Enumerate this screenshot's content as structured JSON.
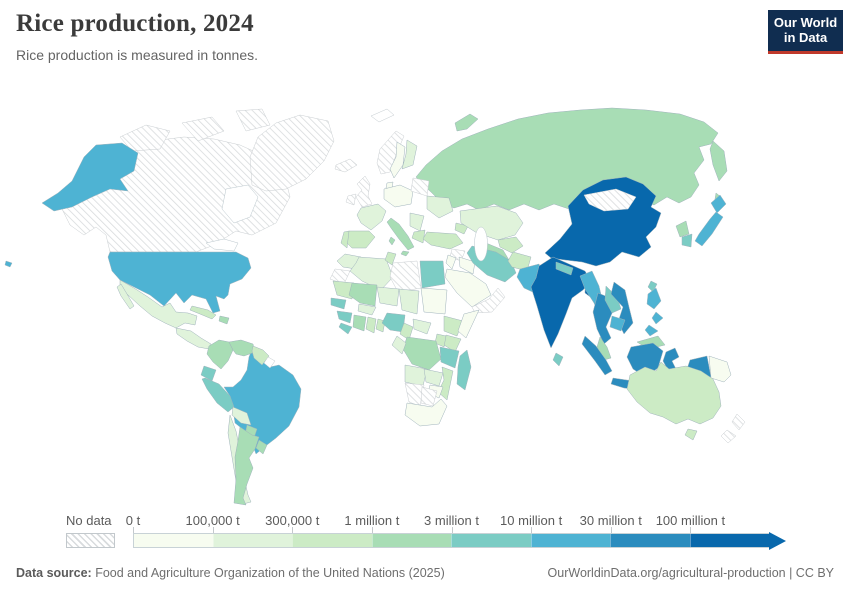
{
  "header": {
    "title": "Rice production, 2024",
    "subtitle": "Rice production is measured in tonnes."
  },
  "logo": {
    "line1": "Our World",
    "line2": "in Data"
  },
  "legend": {
    "no_data_label": "No data",
    "bins": [
      {
        "label": "0 t",
        "color": "#f7fcf0"
      },
      {
        "label": "100,000 t",
        "color": "#e0f3db"
      },
      {
        "label": "300,000 t",
        "color": "#ccebc5"
      },
      {
        "label": "1 million t",
        "color": "#a8ddb5"
      },
      {
        "label": "3 million t",
        "color": "#7bccc4"
      },
      {
        "label": "10 million t",
        "color": "#4eb3d3"
      },
      {
        "label": "30 million t",
        "color": "#2b8cbe"
      },
      {
        "label": "100 million t",
        "color": "#0868ac"
      }
    ]
  },
  "footer": {
    "source_prefix": "Data source:",
    "source": "Food and Agriculture Organization of the United Nations (2025)",
    "right": "OurWorldinData.org/agricultural-production | CC BY"
  },
  "chart_data": {
    "type": "heatmap",
    "variant": "world-choropleth",
    "title": "Rice production, 2024",
    "subtitle": "Rice production is measured in tonnes.",
    "unit": "tonnes",
    "bin_labels": [
      "0 t",
      "100,000 t",
      "300,000 t",
      "1 million t",
      "3 million t",
      "10 million t",
      "30 million t",
      "100 million t"
    ],
    "bin_colors": [
      "#f7fcf0",
      "#e0f3db",
      "#ccebc5",
      "#a8ddb5",
      "#7bccc4",
      "#4eb3d3",
      "#2b8cbe",
      "#0868ac"
    ],
    "no_data": [
      "Canada",
      "Greenland",
      "Iceland",
      "United Kingdom",
      "Ireland",
      "Norway",
      "Belarus/Baltics",
      "Western Sahara",
      "Libya",
      "Syria",
      "Yemen/Oman",
      "Mongolia",
      "Namibia",
      "Botswana",
      "New Zealand"
    ],
    "outline_only": [
      "Svalbard",
      "French Guiana"
    ],
    "countries": {
      "China": 7,
      "India": 7,
      "Bangladesh": 7,
      "Indonesia": 6,
      "Vietnam": 6,
      "Thailand": 6,
      "United States": 5,
      "Brazil": 5,
      "Pakistan": 5,
      "Myanmar": 5,
      "Philippines": 5,
      "Japan": 5,
      "Cambodia": 5,
      "Egypt": 4,
      "Iran": 4,
      "Nigeria": 4,
      "Tanzania": 4,
      "Madagascar": 4,
      "Peru": 4,
      "Ecuador": 4,
      "Guinea": 4,
      "Sierra Leone/Liberia": 4,
      "Nepal": 4,
      "Sri Lanka": 4,
      "South Korea": 4,
      "Taiwan": 4,
      "Senegal": 4,
      "Laos": 4,
      "Russia": 3,
      "Italy": 3,
      "Mali": 3,
      "Ivory Coast": 3,
      "DR Congo": 3,
      "Colombia": 3,
      "Venezuela": 3,
      "Paraguay": 3,
      "Argentina": 3,
      "Uruguay": 3,
      "North Korea": 3,
      "Malaysia": 3,
      "Turkmenistan": 3,
      "Haiti/Dominican Rep.": 3,
      "Spain": 2,
      "Portugal": 2,
      "Greece": 2,
      "Turkey": 2,
      "Afghanistan": 2,
      "Uzbekistan": 2,
      "Cuba": 2,
      "Australia": 2,
      "Mauritania": 2,
      "Ghana": 2,
      "Togo/Benin": 2,
      "Cameroon": 2,
      "Mozambique": 2,
      "Ethiopia": 2,
      "Kenya": 2,
      "Uganda": 2,
      "Guyana/Suriname": 2,
      "Tunisia": 2,
      "Caucasus": 2,
      "Mexico": 1,
      "France": 1,
      "Ukraine": 1,
      "Kazakhstan": 1,
      "Algeria": 1,
      "Morocco": 1,
      "Niger": 1,
      "Chad": 1,
      "Zambia": 1,
      "Angola": 1,
      "Chile": 1,
      "Bolivia": 1,
      "Central America": 1,
      "Burkina Faso": 1,
      "Congo/Gabon": 1,
      "Central African Republic": 1,
      "Finland": 1,
      "Balkans": 1,
      "Central Europe": 0,
      "Sweden": 0,
      "Iraq": 0,
      "Saudi Arabia": 0,
      "Jordan": 0,
      "Sudan": 0,
      "Somalia": 0,
      "South Africa": 0,
      "Papua New Guinea": 0,
      "Zimbabwe": 0,
      "Denmark": 0
    }
  }
}
